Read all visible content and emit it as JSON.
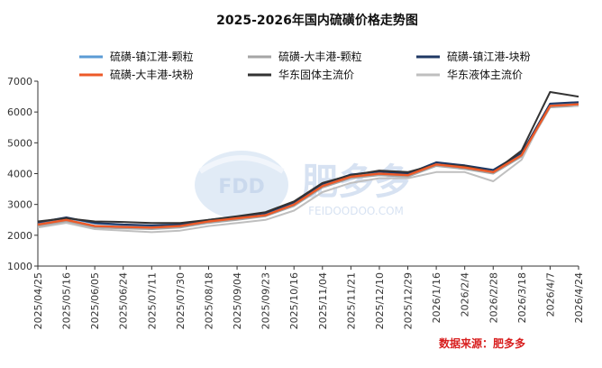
{
  "chart_data": {
    "type": "line",
    "title": "2025-2026年国内硫磺价格走势图",
    "xlabel": "",
    "ylabel": "",
    "ylim": [
      1000,
      7000
    ],
    "yticks": [
      1000,
      2000,
      3000,
      4000,
      5000,
      6000,
      7000
    ],
    "grid": false,
    "legend_position": "top",
    "xticks": [
      "2025/04/25",
      "2025/05/16",
      "2025/06/05",
      "2025/06/24",
      "2025/07/11",
      "2025/07/30",
      "2025/08/18",
      "2025/09/04",
      "2025/09/23",
      "2025/10/16",
      "2025/11/04",
      "2025/11/21",
      "2025/12/10",
      "2025/12/29",
      "2026/1/16",
      "2026/2/4",
      "2026/2/28",
      "2026/3/18",
      "2026/4/7",
      "2026/4/24"
    ],
    "x": [
      "2025/04/25",
      "2025/05/16",
      "2025/06/05",
      "2025/06/24",
      "2025/07/11",
      "2025/07/30",
      "2025/08/18",
      "2025/09/04",
      "2025/09/23",
      "2025/10/16",
      "2025/11/04",
      "2025/11/21",
      "2025/12/10",
      "2025/12/29",
      "2026/1/16",
      "2026/2/4",
      "2026/2/28",
      "2026/3/18",
      "2026/4/7",
      "2026/4/24"
    ],
    "series": [
      {
        "name": "硫磺-镇江港-颗粒",
        "color": "#5b9bd5",
        "values": [
          2400,
          2560,
          2380,
          2330,
          2300,
          2330,
          2480,
          2580,
          2700,
          3050,
          3650,
          3950,
          4050,
          3980,
          4350,
          4250,
          4100,
          4650,
          6250,
          6300
        ]
      },
      {
        "name": "硫磺-大丰港-颗粒",
        "color": "#a5a5a5",
        "values": [
          2300,
          2450,
          2250,
          2220,
          2200,
          2250,
          2400,
          2500,
          2620,
          2950,
          3550,
          3850,
          3950,
          3900,
          4250,
          4150,
          4000,
          4550,
          6150,
          6200
        ]
      },
      {
        "name": "硫磺-镇江港-块粉",
        "color": "#1f3864",
        "values": [
          2420,
          2580,
          2400,
          2350,
          2320,
          2350,
          2500,
          2600,
          2720,
          3070,
          3670,
          3970,
          4070,
          4000,
          4370,
          4270,
          4120,
          4670,
          6270,
          6320
        ]
      },
      {
        "name": "硫磺-大丰港-块粉",
        "color": "#ed5a28",
        "values": [
          2350,
          2500,
          2300,
          2270,
          2250,
          2300,
          2450,
          2550,
          2650,
          3000,
          3600,
          3900,
          4000,
          3950,
          4300,
          4200,
          4050,
          4600,
          6200,
          6250
        ]
      },
      {
        "name": "华东固体主流价",
        "color": "#333333",
        "values": [
          2450,
          2550,
          2450,
          2430,
          2400,
          2400,
          2500,
          2620,
          2750,
          3100,
          3700,
          3950,
          4100,
          4050,
          4300,
          4250,
          4050,
          4750,
          6650,
          6500
        ]
      },
      {
        "name": "华东液体主流价",
        "color": "#bfbfbf",
        "values": [
          2250,
          2400,
          2200,
          2150,
          2100,
          2150,
          2300,
          2400,
          2500,
          2800,
          3400,
          3700,
          3850,
          3850,
          4050,
          4050,
          3750,
          4450,
          6250,
          6200
        ]
      }
    ]
  },
  "watermark": {
    "text": "肥多多",
    "domain": "FEIDOODOO.COM",
    "logo": "FDD"
  },
  "source_text": "数据来源：肥多多"
}
